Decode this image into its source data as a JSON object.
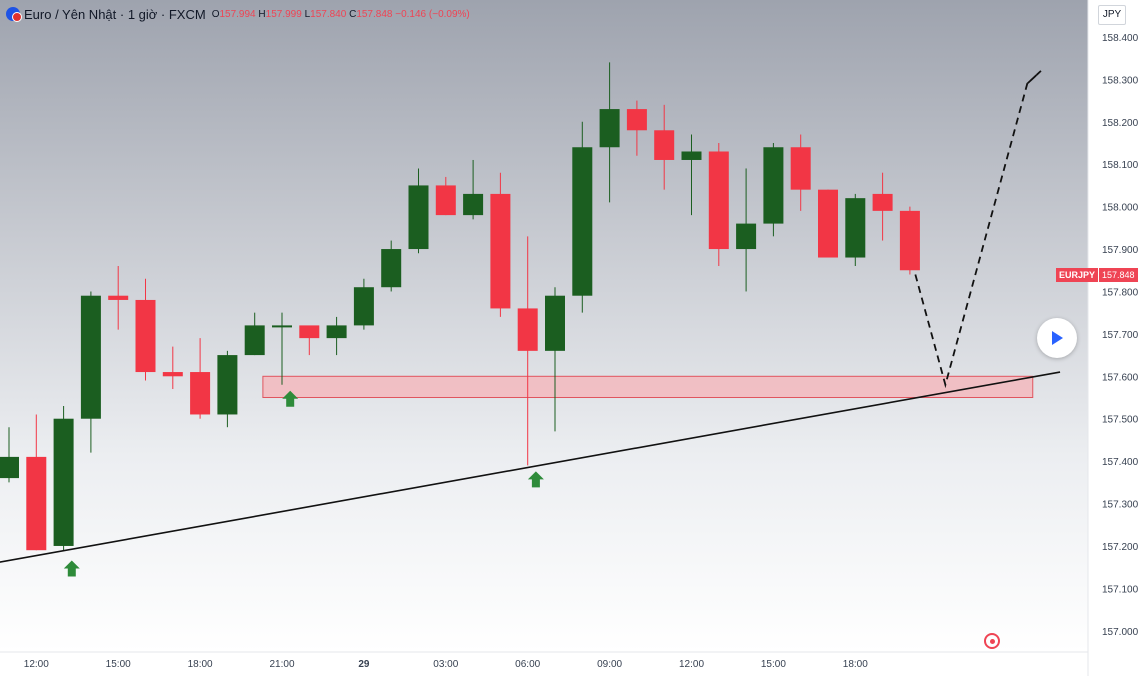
{
  "legend": {
    "title": "Euro / Yên Nhật · 1 giờ · FXCM",
    "open_label": "O",
    "open": "157.994",
    "high_label": "H",
    "high": "157.999",
    "low_label": "L",
    "low": "157.840",
    "close_label": "C",
    "close": "157.848",
    "change": "−0.146 (−0.09%)"
  },
  "currency": "JPY",
  "last_price": {
    "symbol": "EURJPY",
    "value": "157.848"
  },
  "colors": {
    "up": "#1b5e20",
    "down": "#f23645",
    "zone_fill": "#f5b3b8",
    "zone_border": "#e0555f",
    "arrow": "#2e8b3a",
    "trendline": "#111111"
  },
  "icons": {
    "logo": "currency-pair-icon",
    "play": "play-icon",
    "target": "target-icon",
    "arrow": "up-arrow-icon"
  },
  "chart_data": {
    "type": "candlestick",
    "title": "Euro / Yên Nhật · 1 giờ · FXCM",
    "x_labels": [
      "12:00",
      "15:00",
      "18:00",
      "21:00",
      "29",
      "03:00",
      "06:00",
      "09:00",
      "12:00",
      "15:00",
      "18:00"
    ],
    "x_label_index": [
      1,
      4,
      7,
      10,
      13,
      16,
      19,
      22,
      25,
      28,
      31
    ],
    "y_ticks": [
      157.0,
      157.1,
      157.2,
      157.3,
      157.4,
      157.5,
      157.6,
      157.7,
      157.8,
      157.9,
      158.0,
      158.1,
      158.2,
      158.3,
      158.4
    ],
    "y_tick_labels": [
      "157.000",
      "157.100",
      "157.200",
      "157.300",
      "157.400",
      "157.500",
      "157.600",
      "157.700",
      "157.800",
      "157.900",
      "158.000",
      "158.100",
      "158.200",
      "158.300",
      "158.400"
    ],
    "ylim": [
      156.95,
      158.44
    ],
    "grid": false,
    "candles": [
      {
        "i": 0,
        "o": 157.36,
        "h": 157.48,
        "l": 157.35,
        "c": 157.41
      },
      {
        "i": 1,
        "o": 157.41,
        "h": 157.51,
        "l": 157.19,
        "c": 157.19
      },
      {
        "i": 2,
        "o": 157.2,
        "h": 157.53,
        "l": 157.19,
        "c": 157.5
      },
      {
        "i": 3,
        "o": 157.5,
        "h": 157.8,
        "l": 157.42,
        "c": 157.79
      },
      {
        "i": 4,
        "o": 157.79,
        "h": 157.86,
        "l": 157.71,
        "c": 157.78
      },
      {
        "i": 5,
        "o": 157.78,
        "h": 157.83,
        "l": 157.59,
        "c": 157.61
      },
      {
        "i": 6,
        "o": 157.61,
        "h": 157.67,
        "l": 157.57,
        "c": 157.6
      },
      {
        "i": 7,
        "o": 157.61,
        "h": 157.69,
        "l": 157.5,
        "c": 157.51
      },
      {
        "i": 8,
        "o": 157.51,
        "h": 157.66,
        "l": 157.48,
        "c": 157.65
      },
      {
        "i": 9,
        "o": 157.65,
        "h": 157.75,
        "l": 157.65,
        "c": 157.72
      },
      {
        "i": 10,
        "o": 157.72,
        "h": 157.75,
        "l": 157.58,
        "c": 157.72
      },
      {
        "i": 11,
        "o": 157.72,
        "h": 157.71,
        "l": 157.65,
        "c": 157.69
      },
      {
        "i": 12,
        "o": 157.69,
        "h": 157.74,
        "l": 157.65,
        "c": 157.72
      },
      {
        "i": 13,
        "o": 157.72,
        "h": 157.83,
        "l": 157.71,
        "c": 157.81
      },
      {
        "i": 14,
        "o": 157.81,
        "h": 157.92,
        "l": 157.8,
        "c": 157.9
      },
      {
        "i": 15,
        "o": 157.9,
        "h": 158.09,
        "l": 157.89,
        "c": 158.05
      },
      {
        "i": 16,
        "o": 158.05,
        "h": 158.07,
        "l": 157.98,
        "c": 157.98
      },
      {
        "i": 17,
        "o": 157.98,
        "h": 158.11,
        "l": 157.97,
        "c": 158.03
      },
      {
        "i": 18,
        "o": 158.03,
        "h": 158.08,
        "l": 157.74,
        "c": 157.76
      },
      {
        "i": 19,
        "o": 157.76,
        "h": 157.93,
        "l": 157.39,
        "c": 157.66
      },
      {
        "i": 20,
        "o": 157.66,
        "h": 157.81,
        "l": 157.47,
        "c": 157.79
      },
      {
        "i": 21,
        "o": 157.79,
        "h": 158.2,
        "l": 157.75,
        "c": 158.14
      },
      {
        "i": 22,
        "o": 158.14,
        "h": 158.34,
        "l": 158.01,
        "c": 158.23
      },
      {
        "i": 23,
        "o": 158.23,
        "h": 158.25,
        "l": 158.12,
        "c": 158.18
      },
      {
        "i": 24,
        "o": 158.18,
        "h": 158.24,
        "l": 158.04,
        "c": 158.11
      },
      {
        "i": 25,
        "o": 158.11,
        "h": 158.17,
        "l": 157.98,
        "c": 158.13
      },
      {
        "i": 26,
        "o": 158.13,
        "h": 158.15,
        "l": 157.86,
        "c": 157.9
      },
      {
        "i": 27,
        "o": 157.9,
        "h": 158.09,
        "l": 157.8,
        "c": 157.96
      },
      {
        "i": 28,
        "o": 157.96,
        "h": 158.15,
        "l": 157.93,
        "c": 158.14
      },
      {
        "i": 29,
        "o": 158.14,
        "h": 158.17,
        "l": 157.99,
        "c": 158.04
      },
      {
        "i": 30,
        "o": 158.04,
        "h": 158.04,
        "l": 157.88,
        "c": 157.88
      },
      {
        "i": 31,
        "o": 157.88,
        "h": 158.03,
        "l": 157.86,
        "c": 158.02
      },
      {
        "i": 32,
        "o": 158.03,
        "h": 158.08,
        "l": 157.92,
        "c": 157.99
      },
      {
        "i": 33,
        "o": 157.99,
        "h": 158.0,
        "l": 157.84,
        "c": 157.85
      }
    ],
    "annotations": {
      "support_zone": {
        "i0": 9.3,
        "i1": 37.5,
        "y0": 157.55,
        "y1": 157.6
      },
      "trendline": {
        "i0": -0.5,
        "y0": 157.16,
        "i1": 38.5,
        "y1": 157.61
      },
      "projection_path": [
        {
          "i": 33.2,
          "y": 157.84
        },
        {
          "i": 34.3,
          "y": 157.58
        },
        {
          "i": 37.3,
          "y": 158.29
        },
        {
          "i": 37.8,
          "y": 158.32
        },
        {
          "i": 37.3,
          "y": 158.29
        },
        {
          "i": 37.8,
          "y": 158.32
        }
      ],
      "up_arrows": [
        {
          "i": 2.3,
          "y": 157.18
        },
        {
          "i": 10.3,
          "y": 157.58
        },
        {
          "i": 19.3,
          "y": 157.39
        }
      ]
    }
  }
}
